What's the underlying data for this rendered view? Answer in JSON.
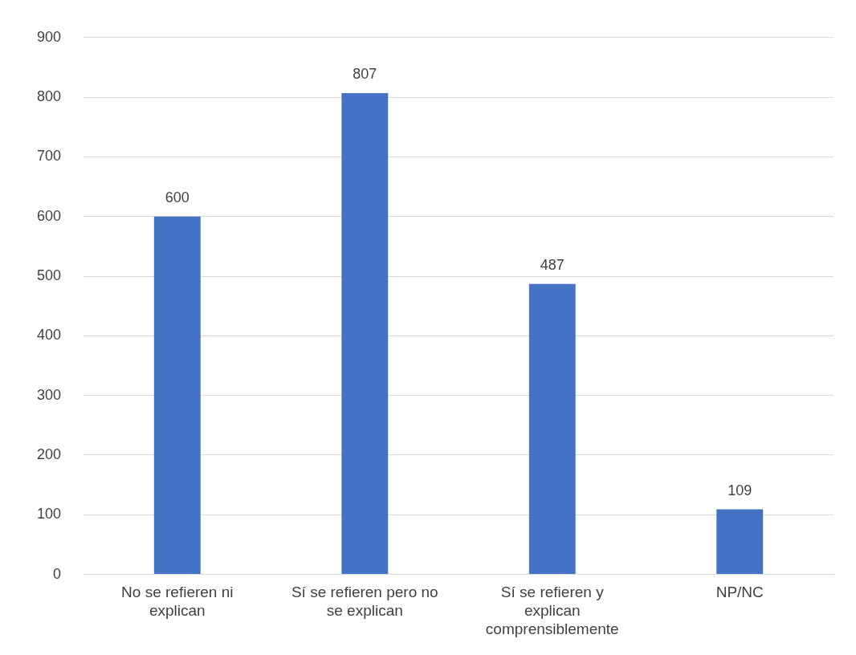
{
  "chart_data": {
    "type": "bar",
    "categories": [
      "No se refieren ni explican",
      "Sí se refieren pero no se explican",
      "Sí se refieren y explican comprensiblemente",
      "NP/NC"
    ],
    "values": [
      600,
      807,
      487,
      109
    ],
    "color": "#4472c4",
    "ylim": [
      0,
      900
    ],
    "yticks": [
      0,
      100,
      200,
      300,
      400,
      500,
      600,
      700,
      800,
      900
    ],
    "grid": "y",
    "data_labels": true,
    "legend": false
  }
}
